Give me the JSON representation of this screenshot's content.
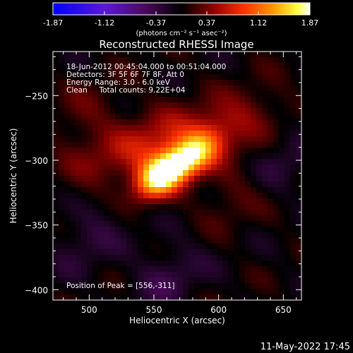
{
  "colorbar": {
    "ticks": [
      "-1.87",
      "-1.12",
      "-0.37",
      "0.37",
      "1.12",
      "1.87"
    ],
    "tick_values": [
      -1.87,
      -1.12,
      -0.37,
      0.37,
      1.12,
      1.87
    ],
    "range": [
      -1.87,
      1.87
    ],
    "unit_label": "(photons cm⁻² s⁻¹ asec⁻²)",
    "colors": [
      "#0000ff",
      "#5a18d8",
      "#4a0a5a",
      "#000000",
      "#8a0000",
      "#ff3000",
      "#ff9a00",
      "#ffff40",
      "#ffffff"
    ]
  },
  "chart_data": {
    "type": "heatmap",
    "title": "Reconstructed RHESSI Image",
    "xlabel": "Heliocentric X (arcsec)",
    "ylabel": "Heliocentric Y (arcsec)",
    "xlim": [
      472,
      664
    ],
    "ylim": [
      -408,
      -216
    ],
    "x_ticks": [
      500,
      550,
      600,
      650
    ],
    "x_tick_labels": [
      "500",
      "550",
      "600",
      "650"
    ],
    "y_ticks": [
      -250,
      -300,
      -350,
      -400
    ],
    "y_tick_labels": [
      "−250",
      "−300",
      "−350",
      "−400"
    ],
    "peak": {
      "x": 556,
      "y": -311,
      "value": 1.87
    },
    "features": [
      {
        "x": 556,
        "y": -311,
        "value": 1.87
      },
      {
        "x": 580,
        "y": -296,
        "value": 1.2
      },
      {
        "x": 548,
        "y": -288,
        "value": 0.55
      },
      {
        "x": 588,
        "y": -282,
        "value": 0.5
      },
      {
        "x": 510,
        "y": -300,
        "value": 0.3
      },
      {
        "x": 622,
        "y": -268,
        "value": 0.3
      },
      {
        "x": 498,
        "y": -265,
        "value": 0.25
      },
      {
        "x": 615,
        "y": -325,
        "value": 0.3
      },
      {
        "x": 500,
        "y": -360,
        "value": -0.3
      },
      {
        "x": 560,
        "y": -390,
        "value": -0.35
      },
      {
        "x": 645,
        "y": -305,
        "value": -0.3
      }
    ],
    "info_lines": [
      "18-Jun-2012 00:45:04.000 to 00:51:04.000",
      "Detectors: 3F 5F 6F 7F 8F, Att 0",
      "Energy Range: 3.0 - 6.0 keV",
      "Clean     Total counts: 9.22E+04"
    ],
    "peak_label": "Position of Peak = [556,-311]"
  },
  "timestamp": "11-May-2022 17:45"
}
